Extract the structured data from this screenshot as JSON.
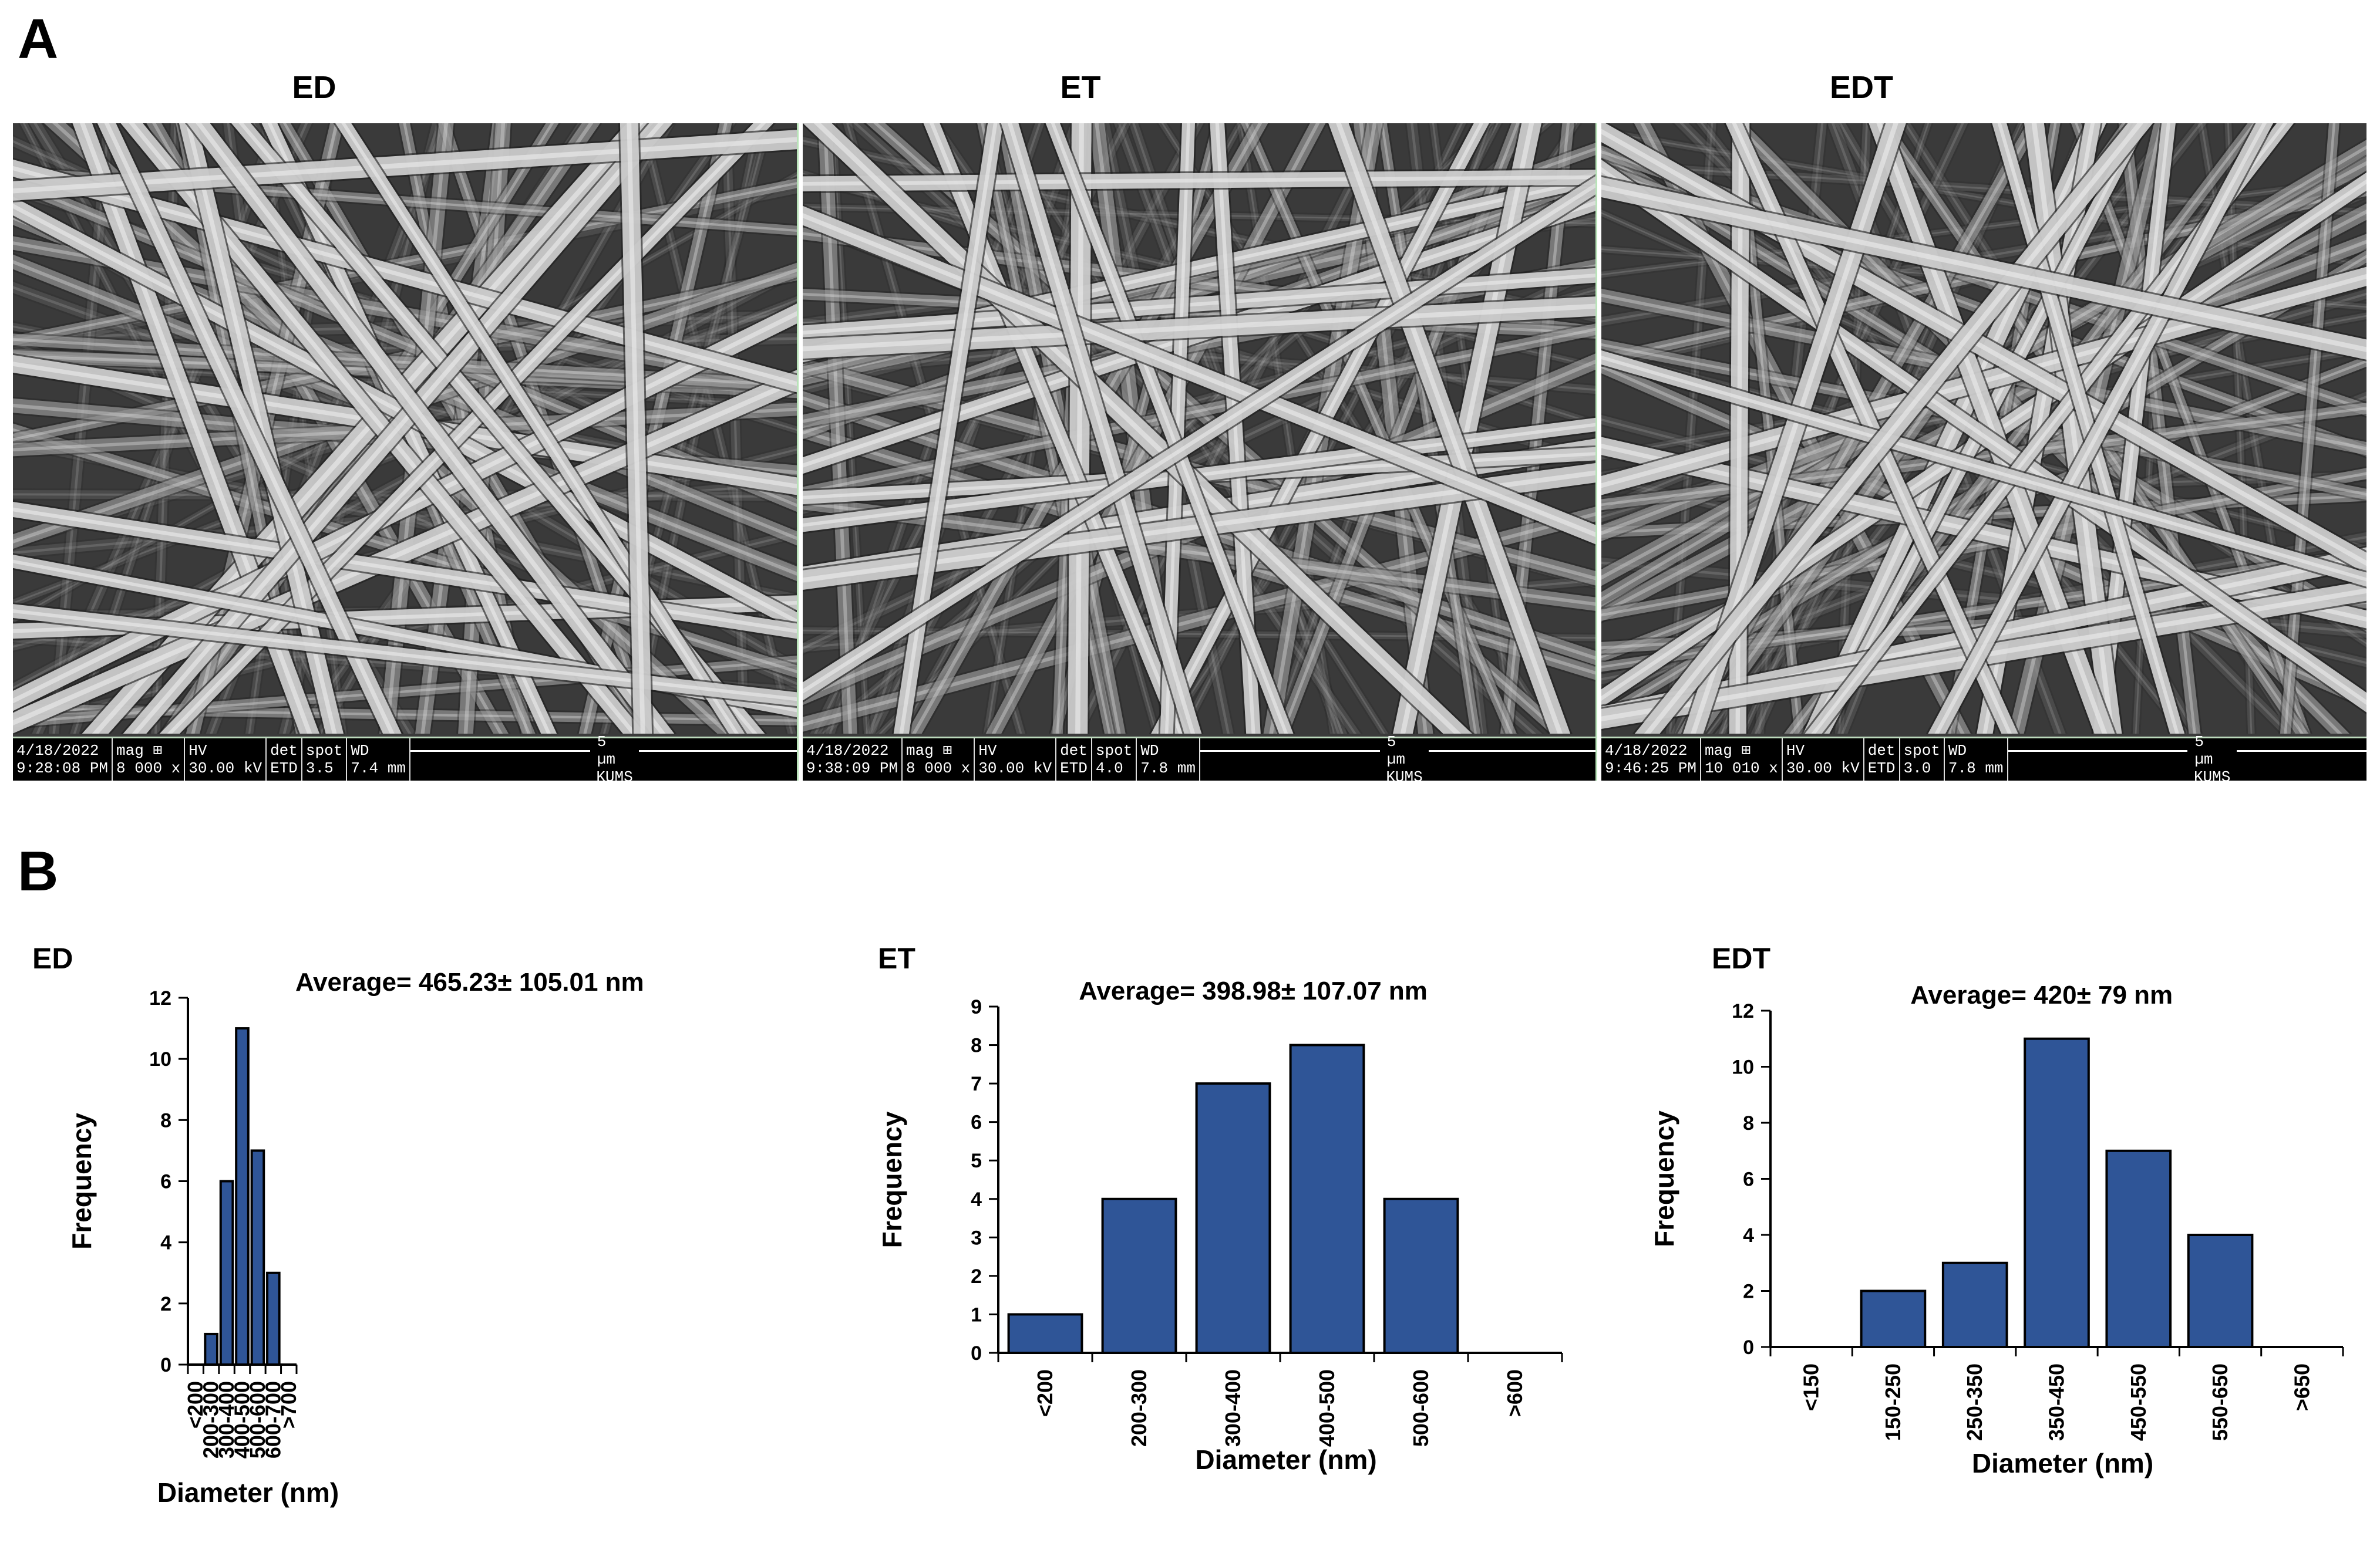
{
  "panels": {
    "a": "A",
    "b": "B"
  },
  "sem_images": [
    {
      "title": "ED",
      "databar": {
        "date": "4/18/2022",
        "time": "9:28:08 PM",
        "mag_label": "mag ⊞",
        "mag": "8 000 x",
        "hv_label": "HV",
        "hv": "30.00 kV",
        "det_label": "det",
        "det": "ETD",
        "spot_label": "spot",
        "spot": "3.5",
        "wd_label": "WD",
        "wd": "7.4 mm",
        "scale": "5 µm",
        "org": "KUMS"
      }
    },
    {
      "title": "ET",
      "databar": {
        "date": "4/18/2022",
        "time": "9:38:09 PM",
        "mag_label": "mag ⊞",
        "mag": "8 000 x",
        "hv_label": "HV",
        "hv": "30.00 kV",
        "det_label": "det",
        "det": "ETD",
        "spot_label": "spot",
        "spot": "4.0",
        "wd_label": "WD",
        "wd": "7.8 mm",
        "scale": "5 µm",
        "org": "KUMS"
      }
    },
    {
      "title": "EDT",
      "databar": {
        "date": "4/18/2022",
        "time": "9:46:25 PM",
        "mag_label": "mag ⊞",
        "mag": "10 010 x",
        "hv_label": "HV",
        "hv": "30.00 kV",
        "det_label": "det",
        "det": "ETD",
        "spot_label": "spot",
        "spot": "3.0",
        "wd_label": "WD",
        "wd": "7.8 mm",
        "scale": "5 µm",
        "org": "KUMS"
      }
    }
  ],
  "colors": {
    "bar_fill": "#2F5597",
    "bar_stroke": "#000000",
    "sem_bg": "#3a3a3a",
    "fiber": "#d4d4d4"
  },
  "chart_data": [
    {
      "type": "bar",
      "panel_label": "ED",
      "title": "Average= 465.23± 105.01 nm",
      "categories": [
        "<200",
        "200-300",
        "300-400",
        "400-500",
        "500-600",
        "600-700",
        ">700"
      ],
      "values": [
        0,
        1,
        6,
        11,
        7,
        3,
        0
      ],
      "xlabel": "Diameter (nm)",
      "ylabel": "Frequency",
      "ylim": [
        0,
        12
      ],
      "yticks": [
        0,
        2,
        4,
        6,
        8,
        10,
        12
      ],
      "grid": false
    },
    {
      "type": "bar",
      "panel_label": "ET",
      "title": "Average= 398.98± 107.07 nm",
      "categories": [
        "<200",
        "200-300",
        "300-400",
        "400-500",
        "500-600",
        ">600"
      ],
      "values": [
        1,
        4,
        7,
        8,
        4,
        0
      ],
      "xlabel": "Diameter (nm)",
      "ylabel": "Frequency",
      "ylim": [
        0,
        9
      ],
      "yticks": [
        0,
        1,
        2,
        3,
        4,
        5,
        6,
        7,
        8,
        9
      ],
      "grid": false
    },
    {
      "type": "bar",
      "panel_label": "EDT",
      "title": "Average= 420± 79 nm",
      "categories": [
        "<150",
        "150-250",
        "250-350",
        "350-450",
        "450-550",
        "550-650",
        ">650"
      ],
      "values": [
        0,
        2,
        3,
        11,
        7,
        4,
        0
      ],
      "xlabel": "Diameter (nm)",
      "ylabel": "Frequency",
      "ylim": [
        0,
        12
      ],
      "yticks": [
        0,
        2,
        4,
        6,
        8,
        10,
        12
      ],
      "grid": false
    }
  ]
}
